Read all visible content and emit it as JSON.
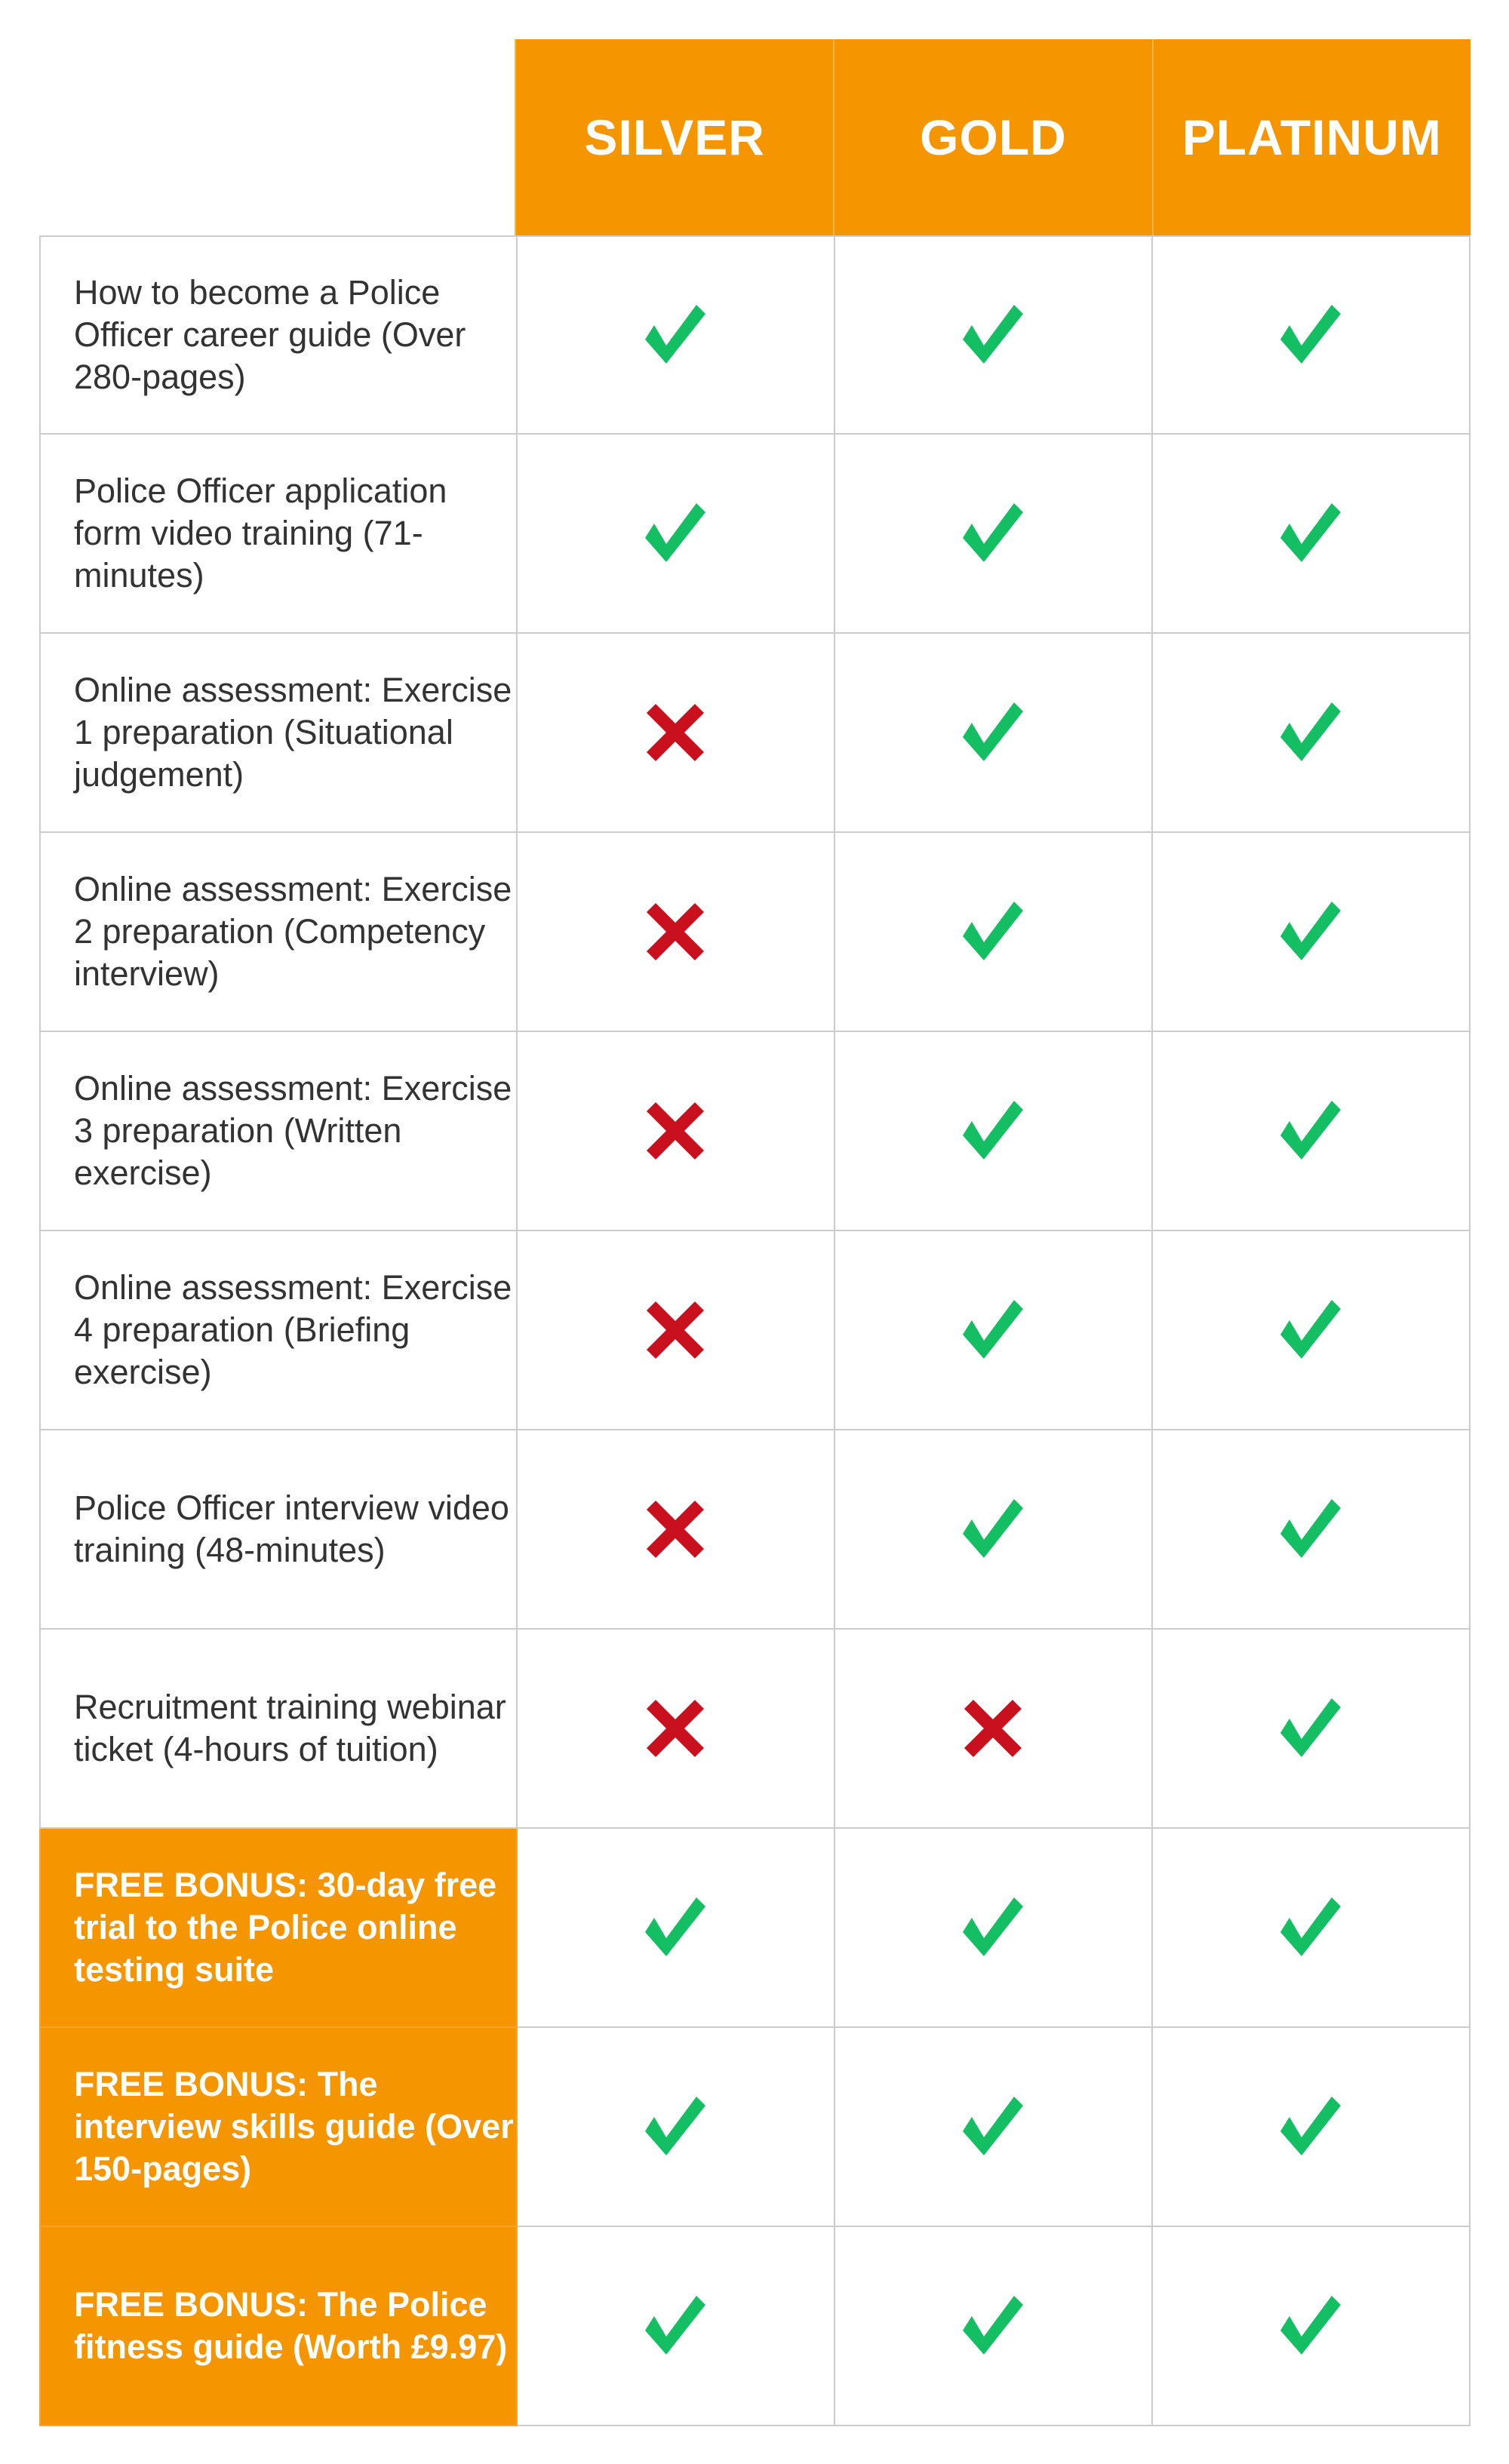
{
  "colors": {
    "accent": "#F59500",
    "check": "#13BF62",
    "cross": "#C8101E"
  },
  "plans": [
    "SILVER",
    "GOLD",
    "PLATINUM"
  ],
  "rows": [
    {
      "feature": "How to become a Police Officer career guide (Over 280-pages)",
      "bonus": false,
      "included": [
        true,
        true,
        true
      ]
    },
    {
      "feature": "Police Officer application form video training (71-minutes)",
      "bonus": false,
      "included": [
        true,
        true,
        true
      ]
    },
    {
      "feature": "Online assessment: Exercise 1 preparation (Situational judgement)",
      "bonus": false,
      "included": [
        false,
        true,
        true
      ]
    },
    {
      "feature": "Online assessment: Exercise 2 preparation (Competency interview)",
      "bonus": false,
      "included": [
        false,
        true,
        true
      ]
    },
    {
      "feature": "Online assessment: Exercise 3 preparation (Written exercise)",
      "bonus": false,
      "included": [
        false,
        true,
        true
      ]
    },
    {
      "feature": "Online assessment: Exercise 4 preparation (Briefing exercise)",
      "bonus": false,
      "included": [
        false,
        true,
        true
      ]
    },
    {
      "feature": "Police Officer interview video training (48-minutes)",
      "bonus": false,
      "included": [
        false,
        true,
        true
      ]
    },
    {
      "feature": "Recruitment training webinar ticket (4-hours of tuition)",
      "bonus": false,
      "included": [
        false,
        false,
        true
      ]
    },
    {
      "feature": "FREE BONUS: 30-day free trial to the Police online testing suite",
      "bonus": true,
      "included": [
        true,
        true,
        true
      ]
    },
    {
      "feature": "FREE BONUS: The interview skills guide (Over 150-pages)",
      "bonus": true,
      "included": [
        true,
        true,
        true
      ]
    },
    {
      "feature": "FREE BONUS: The Police fitness guide (Worth £9.97)",
      "bonus": true,
      "included": [
        true,
        true,
        true
      ]
    }
  ]
}
